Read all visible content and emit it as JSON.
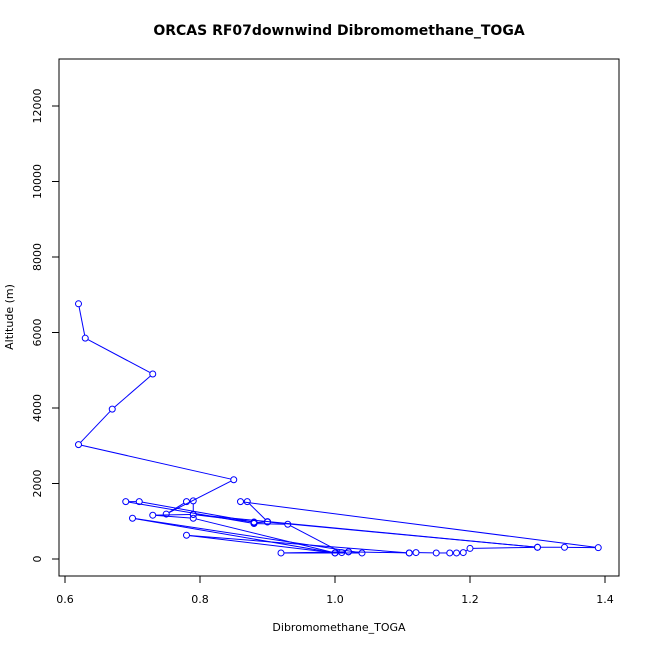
{
  "chart_data": {
    "type": "line",
    "title": "ORCAS RF07downwind Dibromomethane_TOGA",
    "xlabel": "Dibromomethane_TOGA",
    "ylabel": "Altitude (m)",
    "xlim": [
      0.6,
      1.4
    ],
    "ylim": [
      0,
      12000
    ],
    "x_ticks": [
      "0.6",
      "0.8",
      "1.0",
      "1.2",
      "1.4"
    ],
    "y_ticks": [
      "0",
      "2000",
      "4000",
      "6000",
      "8000",
      "10000",
      "12000"
    ],
    "grid": false,
    "line_color": "#0000ff",
    "marker": "open-circle",
    "series": [
      {
        "points": [
          [
            0.62,
            6760
          ],
          [
            0.63,
            5850
          ],
          [
            0.73,
            4900
          ],
          [
            0.67,
            3970
          ],
          [
            0.62,
            3030
          ],
          [
            0.85,
            2100
          ],
          [
            0.75,
            1190
          ],
          [
            0.78,
            1520
          ],
          [
            0.79,
            1540
          ],
          [
            0.79,
            1180
          ],
          [
            0.88,
            980
          ],
          [
            0.71,
            1520
          ],
          [
            0.69,
            1520
          ],
          [
            0.88,
            940
          ],
          [
            0.93,
            920
          ],
          [
            1.01,
            170
          ],
          [
            1.02,
            190
          ],
          [
            1.11,
            160
          ],
          [
            1.12,
            170
          ],
          [
            1.15,
            160
          ],
          [
            1.17,
            160
          ],
          [
            1.18,
            160
          ],
          [
            1.19,
            170
          ],
          [
            1.2,
            280
          ],
          [
            1.3,
            310
          ],
          [
            1.34,
            310
          ],
          [
            1.39,
            300
          ],
          [
            0.86,
            1520
          ],
          [
            0.87,
            1520
          ],
          [
            0.9,
            990
          ],
          [
            0.88,
            960
          ],
          [
            0.9,
            980
          ],
          [
            1.3,
            310
          ],
          [
            0.79,
            1180
          ],
          [
            0.73,
            1160
          ],
          [
            0.79,
            1080
          ],
          [
            1.0,
            160
          ],
          [
            0.7,
            1080
          ],
          [
            1.04,
            160
          ],
          [
            0.92,
            160
          ],
          [
            1.02,
            190
          ],
          [
            1.0,
            160
          ],
          [
            0.78,
            630
          ],
          [
            1.11,
            160
          ]
        ]
      }
    ]
  }
}
